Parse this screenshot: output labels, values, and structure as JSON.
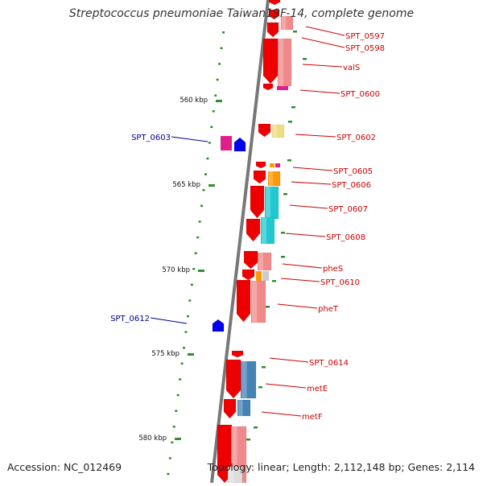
{
  "title": "Streptococcus pneumoniae Taiwan19F-14, complete genome",
  "footer": {
    "accession": "Accession: NC_012469",
    "summary": "Topology: linear; Length: 2,112,148 bp; Genes: 2,114"
  },
  "colors": {
    "backbone": "#777777",
    "tick": "#2f8f2f",
    "label_forward": "#cc0000",
    "label_reverse": "#00008b",
    "gene_red": "#ee0000",
    "pink": "#f08a8a",
    "cyan": "#20c8d0",
    "steel": "#4682b4",
    "orange": "#ff9900",
    "khaki": "#eedd82",
    "magenta": "#e0208a",
    "blue": "#0000ee"
  },
  "scale_labels": [
    "560 kbp",
    "565 kbp",
    "570 kbp",
    "575 kbp",
    "580 kbp"
  ],
  "gene_labels": [
    "SPT_0597",
    "SPT_0598",
    "valS",
    "SPT_0600",
    "SPT_0602",
    "SPT_0603",
    "SPT_0605",
    "SPT_0606",
    "SPT_0607",
    "SPT_0608",
    "pheS",
    "SPT_0610",
    "pheT",
    "SPT_0612",
    "SPT_0614",
    "metE",
    "metF"
  ]
}
